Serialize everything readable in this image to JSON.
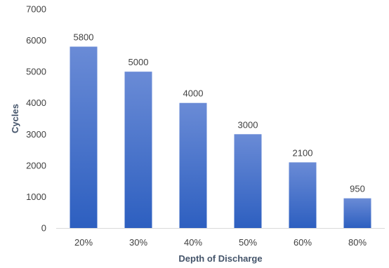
{
  "chart_data": {
    "type": "bar",
    "categories": [
      "20%",
      "30%",
      "40%",
      "50%",
      "60%",
      "80%"
    ],
    "values": [
      5800,
      5000,
      4000,
      3000,
      2100,
      950
    ],
    "title": "",
    "xlabel": "Depth of Discharge",
    "ylabel": "Cycles",
    "ylim": [
      0,
      7000
    ],
    "yticks": [
      0,
      1000,
      2000,
      3000,
      4000,
      5000,
      6000,
      7000
    ],
    "grid": false,
    "data_labels": true,
    "bar_color_top": "#6a8bd6",
    "bar_color_bottom": "#2d5fc0",
    "axis_line_color": "#d9d9d9"
  }
}
